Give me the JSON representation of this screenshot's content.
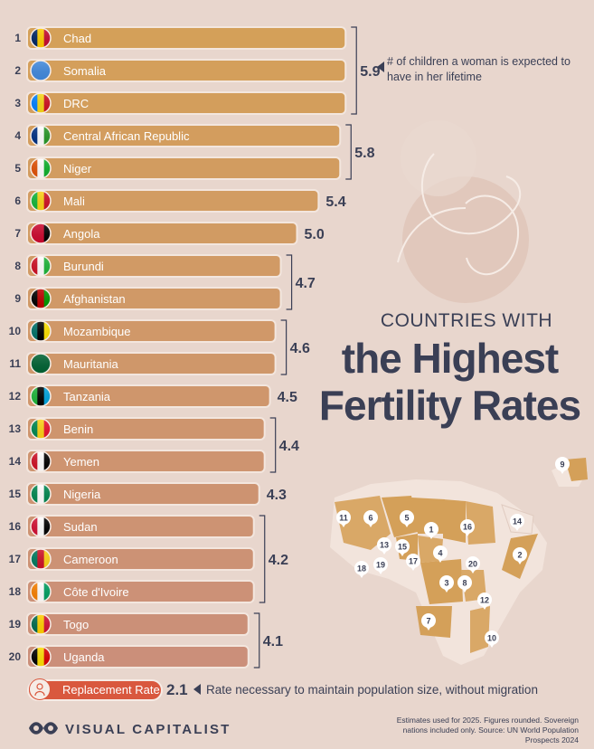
{
  "title": {
    "line1": "COUNTRIES WITH",
    "line2": "the Highest",
    "line3": "Fertility Rates"
  },
  "legend_note": "# of children a woman is expected to have in her lifetime",
  "replacement": {
    "label": "Replacement Rate",
    "value": "2.1",
    "note": "Rate necessary to maintain population size, without migration"
  },
  "footer": {
    "brand": "VISUAL CAPITALIST",
    "note": "Estimates used for 2025. Figures rounded. Sovereign nations included only. Source: UN World Population Prospects 2024"
  },
  "colors": {
    "background": "#e8d6cd",
    "bar_top": "#d4a059",
    "bar_bottom": "#cb8f7a",
    "accent": "#d9583e",
    "text": "#3a3f55"
  },
  "chart_data": {
    "type": "bar",
    "orientation": "horizontal",
    "title": "Countries with the Highest Fertility Rates",
    "xlabel": "# of children a woman is expected to have in her lifetime",
    "ylabel": "",
    "categories": [
      "Chad",
      "Somalia",
      "DRC",
      "Central African Republic",
      "Niger",
      "Mali",
      "Angola",
      "Burundi",
      "Afghanistan",
      "Mozambique",
      "Mauritania",
      "Tanzania",
      "Benin",
      "Yemen",
      "Nigeria",
      "Sudan",
      "Cameroon",
      "Côte d'Ivoire",
      "Togo",
      "Uganda"
    ],
    "ranks": [
      "1",
      "2",
      "3",
      "4",
      "5",
      "6",
      "7",
      "8",
      "9",
      "10",
      "11",
      "12",
      "13",
      "14",
      "15",
      "16",
      "17",
      "18",
      "19",
      "20"
    ],
    "values": [
      5.9,
      5.9,
      5.9,
      5.8,
      5.8,
      5.4,
      5.0,
      4.7,
      4.7,
      4.6,
      4.6,
      4.5,
      4.4,
      4.4,
      4.3,
      4.2,
      4.2,
      4.2,
      4.1,
      4.1
    ],
    "group_labels": [
      {
        "label": "5.9",
        "from": 0,
        "to": 2
      },
      {
        "label": "5.8",
        "from": 3,
        "to": 4
      },
      {
        "label": "5.4",
        "from": 5,
        "to": 5
      },
      {
        "label": "5.0",
        "from": 6,
        "to": 6
      },
      {
        "label": "4.7",
        "from": 7,
        "to": 8
      },
      {
        "label": "4.6",
        "from": 9,
        "to": 10
      },
      {
        "label": "4.5",
        "from": 11,
        "to": 11
      },
      {
        "label": "4.4",
        "from": 12,
        "to": 13
      },
      {
        "label": "4.3",
        "from": 14,
        "to": 14
      },
      {
        "label": "4.2",
        "from": 15,
        "to": 17
      },
      {
        "label": "4.1",
        "from": 18,
        "to": 19
      }
    ],
    "xlim": [
      0,
      5.9
    ],
    "grid": false,
    "legend": "none"
  },
  "map": {
    "markers": [
      "1",
      "2",
      "3",
      "4",
      "5",
      "6",
      "7",
      "8",
      "9",
      "10",
      "11",
      "12",
      "13",
      "14",
      "15",
      "16",
      "17",
      "18",
      "19",
      "20"
    ]
  }
}
